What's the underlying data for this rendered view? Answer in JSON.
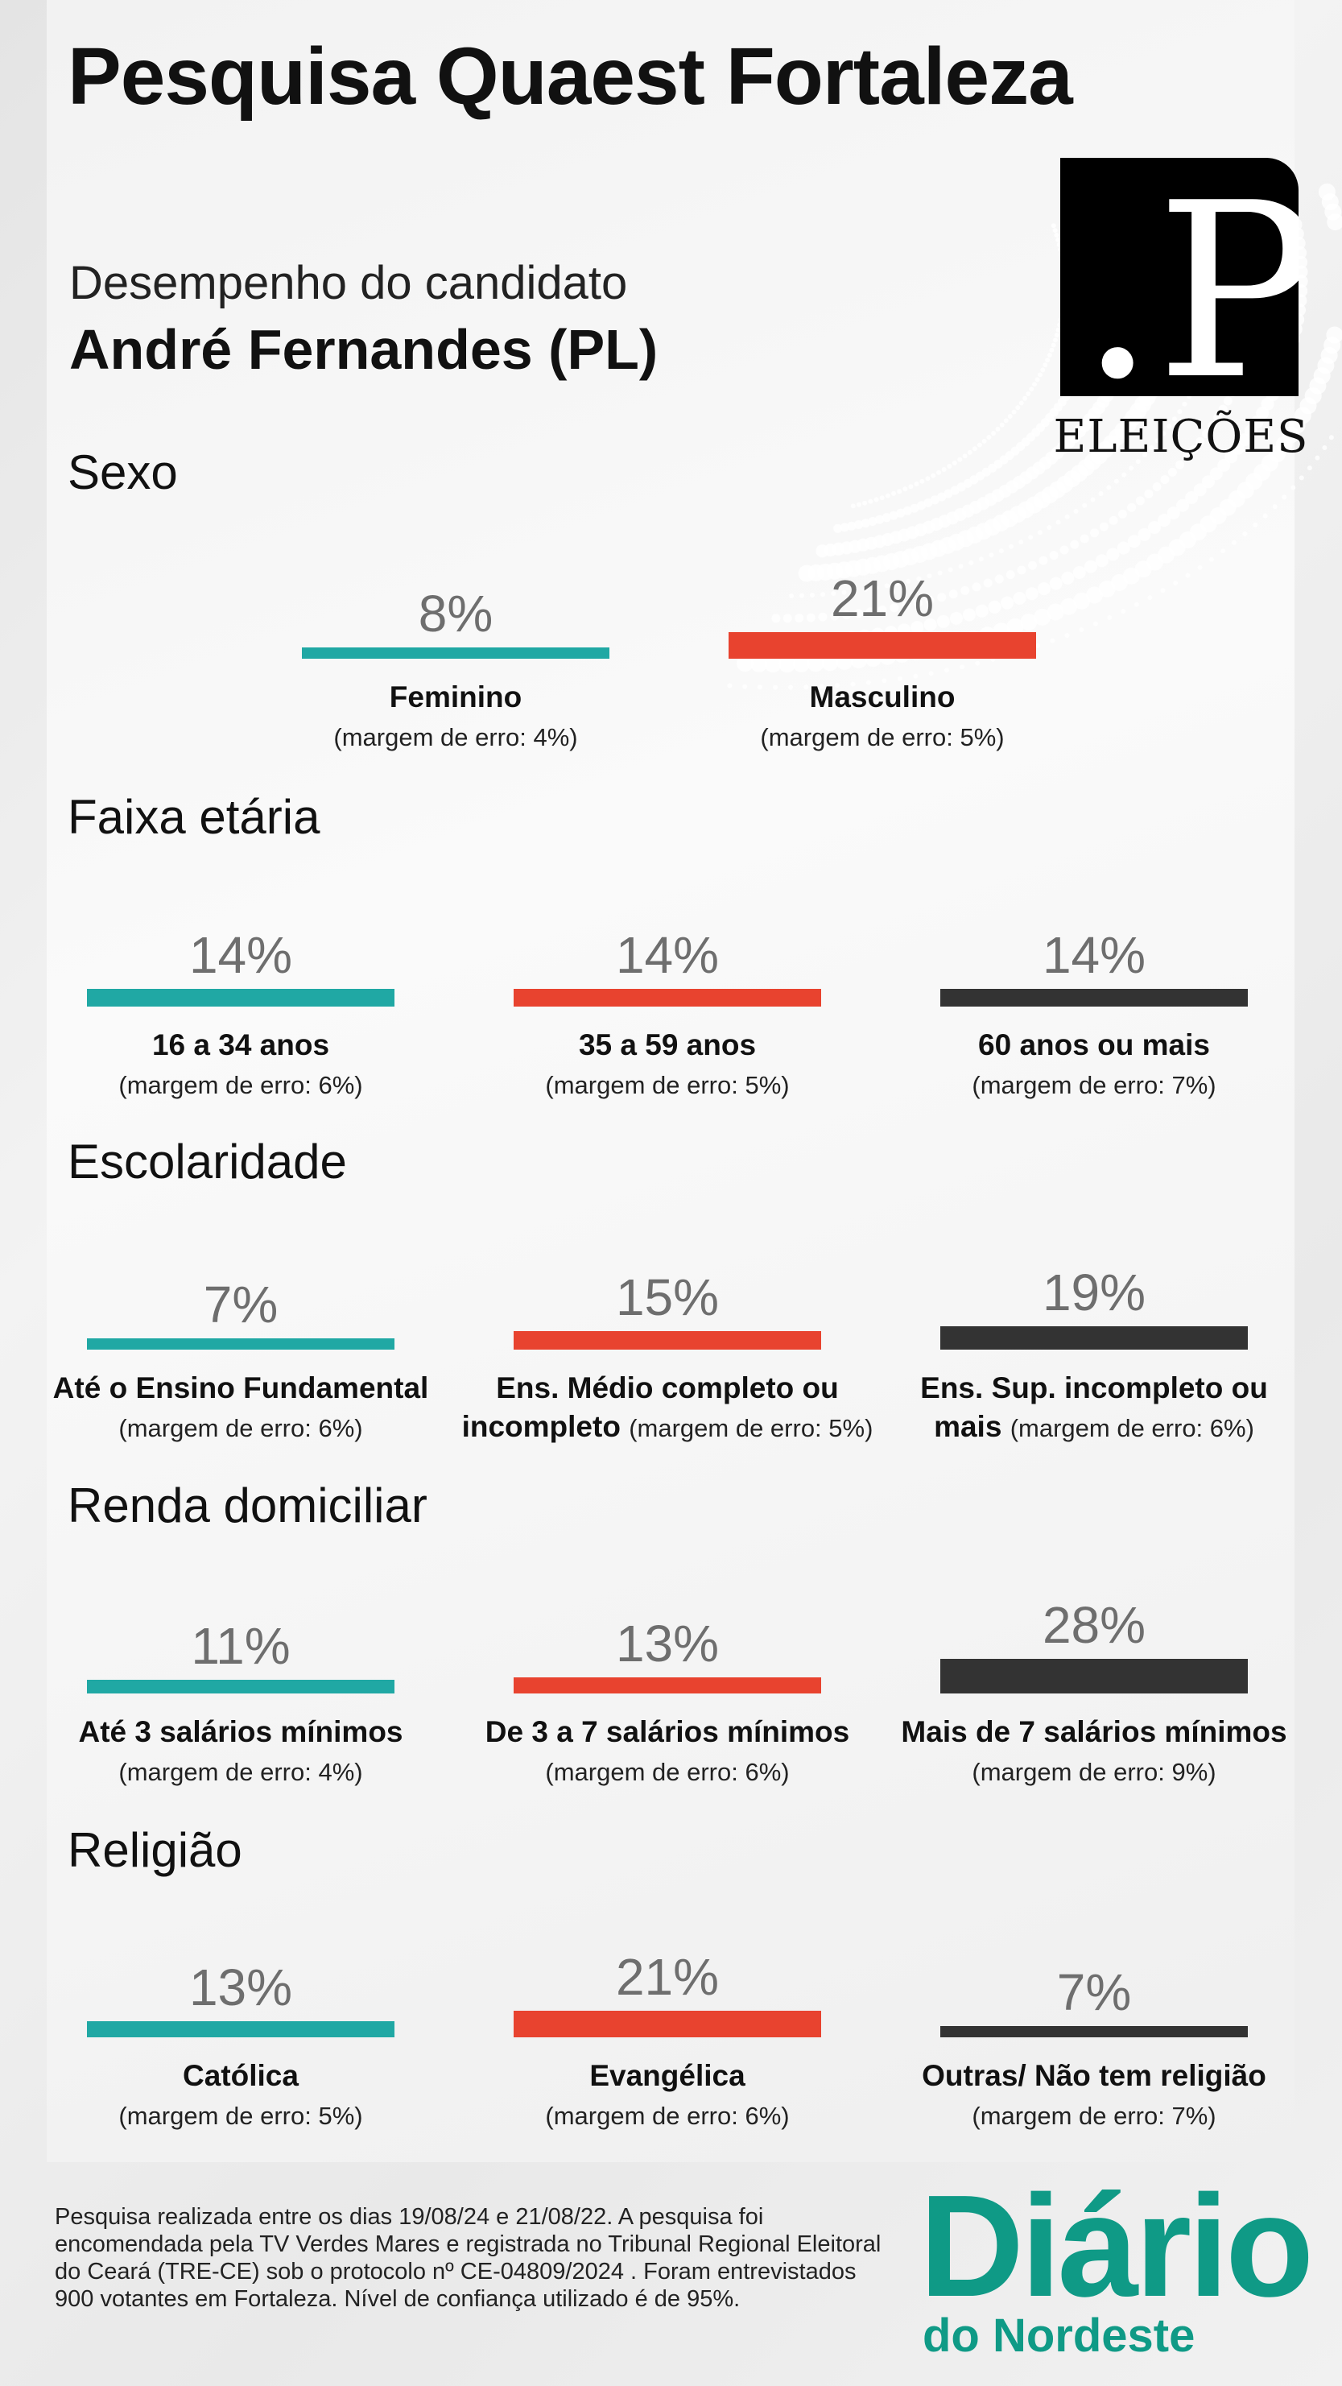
{
  "header": {
    "title": "Pesquisa Quaest Fortaleza",
    "subtitle": "Desempenho do candidato",
    "candidate": "André Fernandes (PL)"
  },
  "logo": {
    "mark": ".P",
    "caption": "ELEIÇÕES"
  },
  "colors": {
    "teal": "#20a8a4",
    "red": "#e8432f",
    "dark": "#333333",
    "brand_green": "#0f9a86"
  },
  "chart_data": [
    {
      "type": "bar",
      "title": "Sexo",
      "categories": [
        "Feminino",
        "Masculino"
      ],
      "values": [
        8,
        21
      ],
      "margins": [
        "(margem de erro: 4%)",
        "(margem de erro: 5%)"
      ]
    },
    {
      "type": "bar",
      "title": "Faixa etária",
      "categories": [
        "16 a 34 anos",
        "35 a 59 anos",
        "60 anos ou mais"
      ],
      "values": [
        14,
        14,
        14
      ],
      "margins": [
        "(margem de erro: 6%)",
        "(margem de erro: 5%)",
        "(margem de erro: 7%)"
      ]
    },
    {
      "type": "bar",
      "title": "Escolaridade",
      "categories": [
        "Até o Ensino Fundamental",
        "Ens. Médio completo ou incompleto",
        "Ens. Sup. incompleto ou mais"
      ],
      "values": [
        7,
        15,
        19
      ],
      "margins": [
        "(margem de erro: 6%)",
        "(margem de erro: 5%)",
        "(margem de erro: 6%)"
      ]
    },
    {
      "type": "bar",
      "title": "Renda domiciliar",
      "categories": [
        "Até 3 salários mínimos",
        "De 3 a 7 salários mínimos",
        "Mais de 7 salários mínimos"
      ],
      "values": [
        11,
        13,
        28
      ],
      "margins": [
        "(margem de erro: 4%)",
        "(margem de erro: 6%)",
        "(margem de erro: 9%)"
      ]
    },
    {
      "type": "bar",
      "title": "Religião",
      "categories": [
        "Católica",
        "Evangélica",
        "Outras/ Não tem religião"
      ],
      "values": [
        13,
        21,
        7
      ],
      "margins": [
        "(margem de erro: 5%)",
        "(margem de erro: 6%)",
        "(margem de erro: 7%)"
      ]
    }
  ],
  "footer": {
    "note": "Pesquisa realizada entre os dias 19/08/24 e  21/08/22. A pesquisa foi encomendada pela TV Verdes Mares e registrada no Tribunal Regional Eleitoral do Ceará (TRE-CE) sob o protocolo nº CE-04809/2024 . Foram entrevistados 900 votantes em Fortaleza. Nível de confiança utilizado é de 95%.",
    "brand_main": "Diário",
    "brand_sub": "do Nordeste"
  }
}
